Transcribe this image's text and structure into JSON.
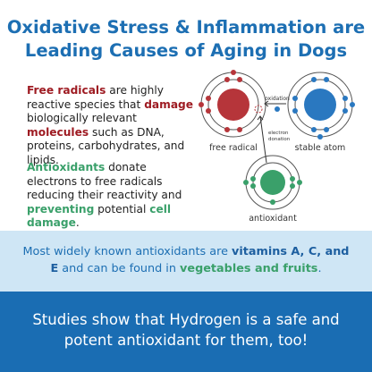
{
  "header": {
    "title": [
      "Oxidative Stress & Inflammation are",
      "Leading Causes of Aging in Dogs"
    ]
  },
  "paragraphs": [
    [
      "Free radicals",
      " are highly reactive species that ",
      "damage",
      " biologically relevant ",
      "molecules",
      " such as DNA, proteins, carbohydrates, and lipids."
    ],
    [
      "Antioxidants",
      " donate electrons to free radicals reducing their reactivity and ",
      "preventing",
      " potential ",
      "cell damage",
      "."
    ]
  ],
  "diagram": {
    "oxidation": "oxidation",
    "free_radical": "free radical",
    "stable_atom": "stable atom",
    "electron_donation": [
      "electron",
      "donation"
    ],
    "antioxidant": "antioxidant"
  },
  "band": [
    "Most widely known antioxidants are ",
    "vitamins A, C, and E",
    " and can be found in ",
    "vegetables and fruits",
    "."
  ],
  "footer": "Studies show that Hydrogen is a safe and potent antioxidant for them, too!"
}
